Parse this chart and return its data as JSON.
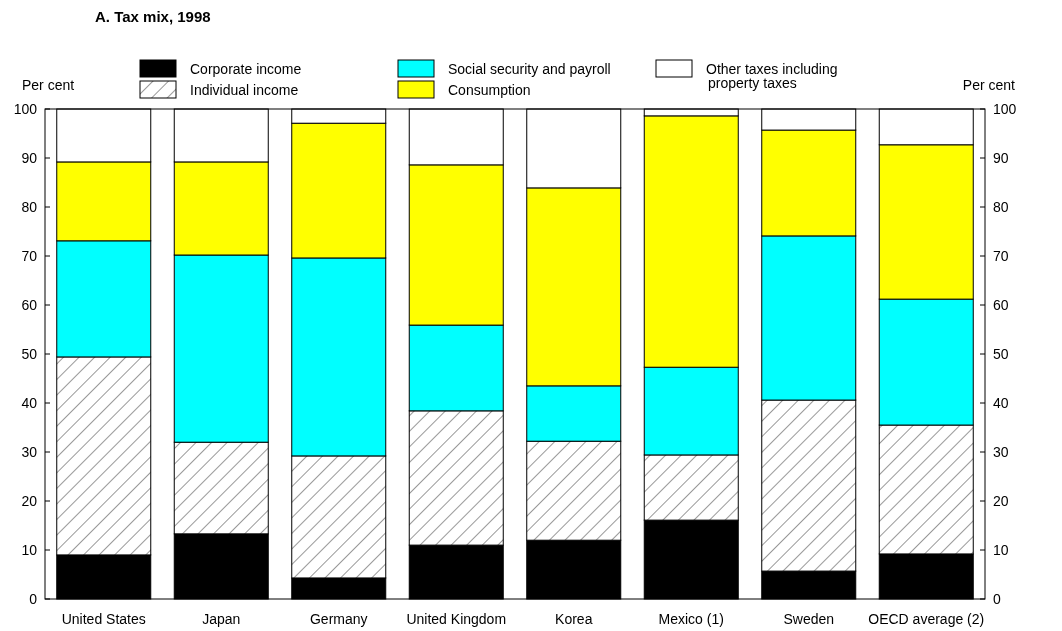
{
  "chart_data": {
    "type": "bar",
    "stacked": true,
    "title": "A.  Tax mix, 1998",
    "ylabel": "Per cent",
    "y2label": "Per cent",
    "categories": [
      "United States",
      "Japan",
      "Germany",
      "United Kingdom",
      "Korea",
      "Mexico (1)",
      "Sweden",
      "OECD average (2)"
    ],
    "series": [
      {
        "name": "Corporate income",
        "color": "#000000",
        "values": [
          9.0,
          13.3,
          4.3,
          11.0,
          12.0,
          16.1,
          5.7,
          9.2
        ]
      },
      {
        "name": "Individual income",
        "color": "#ffffff",
        "values": [
          40.4,
          18.7,
          24.9,
          27.4,
          20.2,
          13.3,
          34.9,
          26.3
        ]
      },
      {
        "name": "Social security and payroll",
        "color": "#00ffff",
        "values": [
          23.7,
          38.2,
          40.4,
          17.5,
          11.3,
          17.9,
          33.5,
          25.7
        ]
      },
      {
        "name": "Consumption",
        "color": "#ffff00",
        "values": [
          16.1,
          19.0,
          27.5,
          32.7,
          40.4,
          51.3,
          21.6,
          31.5
        ]
      },
      {
        "name": "Other taxes including\nproperty taxes",
        "color": "#ffffff",
        "values": [
          10.8,
          10.8,
          2.9,
          11.4,
          16.1,
          1.4,
          4.3,
          7.3
        ]
      }
    ],
    "ylim": [
      0,
      100
    ],
    "yticks": [
      0,
      10,
      20,
      30,
      40,
      50,
      60,
      70,
      80,
      90,
      100
    ],
    "y2lim": [
      0,
      100
    ],
    "y2ticks": [
      0,
      10,
      20,
      30,
      40,
      50,
      60,
      70,
      80,
      90,
      100
    ],
    "legend": "top",
    "grid": false
  }
}
